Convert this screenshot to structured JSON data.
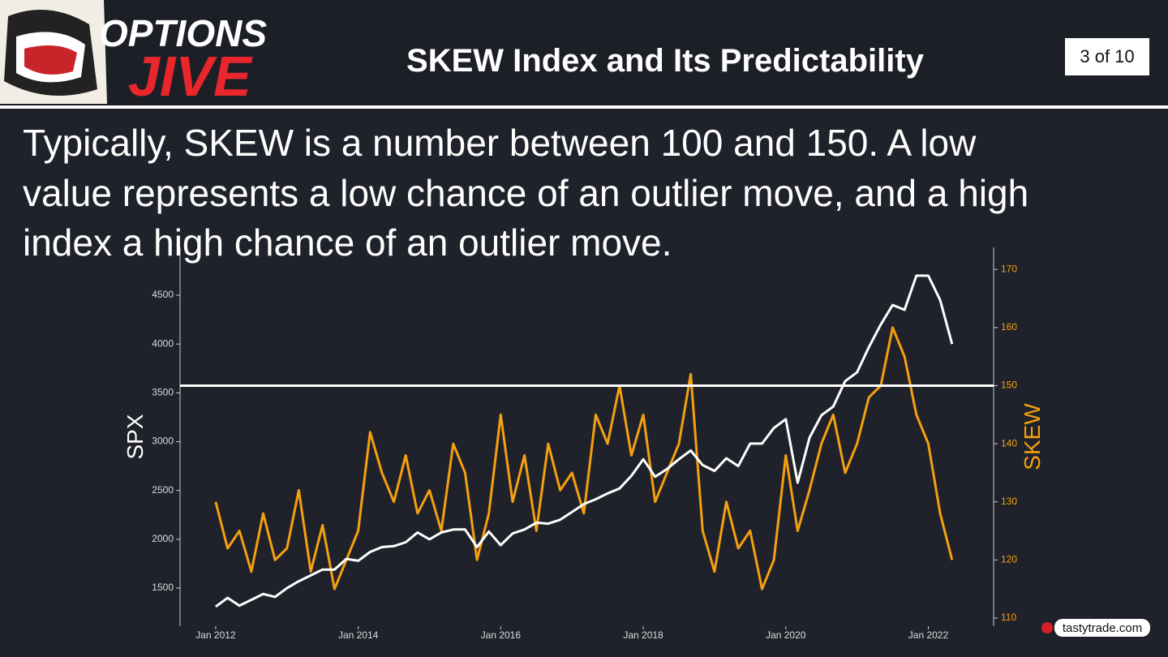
{
  "header": {
    "logo_top": "OPTIONS",
    "logo_bottom": "JIVE",
    "title": "SKEW Index and Its Predictability",
    "page": "3 of 10"
  },
  "body_lines": [
    "Typically, SKEW is a number between 100 and 150. A low",
    "value represents a low chance of an outlier move, and a high",
    "index a high chance of an outlier move."
  ],
  "footer": {
    "brand": "tastytrade.com"
  },
  "chart_data": {
    "type": "line",
    "x": [
      "2012-01",
      "2012-03",
      "2012-05",
      "2012-07",
      "2012-09",
      "2012-11",
      "2013-01",
      "2013-03",
      "2013-05",
      "2013-07",
      "2013-09",
      "2013-11",
      "2014-01",
      "2014-03",
      "2014-05",
      "2014-07",
      "2014-09",
      "2014-11",
      "2015-01",
      "2015-03",
      "2015-05",
      "2015-07",
      "2015-09",
      "2015-11",
      "2016-01",
      "2016-03",
      "2016-05",
      "2016-07",
      "2016-09",
      "2016-11",
      "2017-01",
      "2017-03",
      "2017-05",
      "2017-07",
      "2017-09",
      "2017-11",
      "2018-01",
      "2018-03",
      "2018-05",
      "2018-07",
      "2018-09",
      "2018-11",
      "2019-01",
      "2019-03",
      "2019-05",
      "2019-07",
      "2019-09",
      "2019-11",
      "2020-01",
      "2020-03",
      "2020-05",
      "2020-07",
      "2020-09",
      "2020-11",
      "2021-01",
      "2021-03",
      "2021-05",
      "2021-07",
      "2021-09",
      "2021-11",
      "2022-01",
      "2022-03",
      "2022-05"
    ],
    "series": [
      {
        "name": "SPX",
        "color": "#ffffff",
        "axis": "y",
        "values": [
          1310,
          1400,
          1320,
          1380,
          1440,
          1410,
          1500,
          1570,
          1630,
          1690,
          1690,
          1800,
          1780,
          1870,
          1920,
          1930,
          1970,
          2070,
          2000,
          2070,
          2100,
          2100,
          1920,
          2080,
          1940,
          2060,
          2100,
          2170,
          2160,
          2200,
          2280,
          2360,
          2410,
          2470,
          2520,
          2650,
          2820,
          2640,
          2720,
          2820,
          2910,
          2760,
          2700,
          2830,
          2750,
          2980,
          2980,
          3140,
          3230,
          2580,
          3040,
          3270,
          3360,
          3620,
          3710,
          3970,
          4200,
          4400,
          4350,
          4700,
          4700,
          4450,
          4000
        ]
      },
      {
        "name": "SKEW",
        "color": "#f5a00f",
        "axis": "y2",
        "values": [
          130,
          122,
          125,
          118,
          128,
          120,
          122,
          132,
          118,
          126,
          115,
          120,
          125,
          142,
          135,
          130,
          138,
          128,
          132,
          125,
          140,
          135,
          120,
          128,
          145,
          130,
          138,
          125,
          140,
          132,
          135,
          128,
          145,
          140,
          150,
          138,
          145,
          130,
          135,
          140,
          152,
          125,
          118,
          130,
          122,
          125,
          115,
          120,
          138,
          125,
          132,
          140,
          145,
          135,
          140,
          148,
          150,
          160,
          155,
          145,
          140,
          128,
          120
        ]
      }
    ],
    "hlines": [
      {
        "value": 150,
        "axis": "y2",
        "color": "#ffffff"
      }
    ],
    "xlim": [
      "2011-07",
      "2022-12"
    ],
    "xticks": [
      {
        "value": "2012-01",
        "label": "Jan 2012"
      },
      {
        "value": "2014-01",
        "label": "Jan 2014"
      },
      {
        "value": "2016-01",
        "label": "Jan 2016"
      },
      {
        "value": "2018-01",
        "label": "Jan 2018"
      },
      {
        "value": "2020-01",
        "label": "Jan 2020"
      },
      {
        "value": "2022-01",
        "label": "Jan 2022"
      }
    ],
    "ylim": [
      1110,
      4990
    ],
    "yticks": [
      1500,
      2000,
      2500,
      3000,
      3500,
      4000,
      4500
    ],
    "y2lim": [
      108.6,
      173.8
    ],
    "y2ticks": [
      110,
      120,
      130,
      140,
      150,
      160,
      170
    ],
    "ylabel": "SPX",
    "y2label": "SKEW"
  }
}
